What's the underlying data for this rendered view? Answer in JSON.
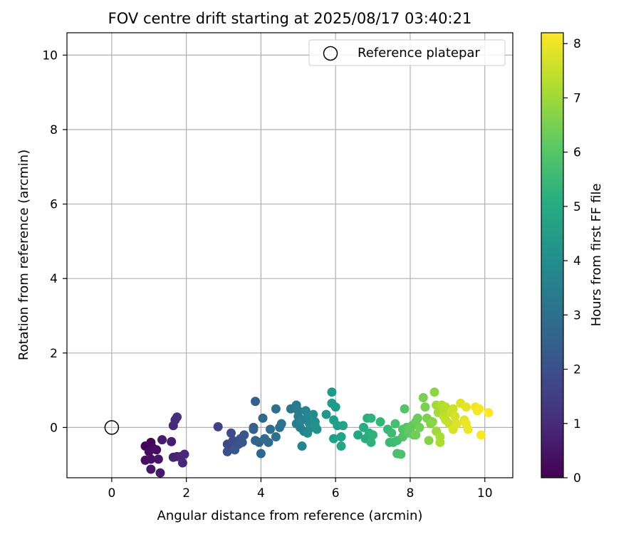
{
  "chart_data": {
    "type": "scatter",
    "title": "FOV centre drift starting at 2025/08/17 03:40:21",
    "xlabel": "Angular distance from reference (arcmin)",
    "ylabel": "Rotation from reference (arcmin)",
    "xlim": [
      -1.2,
      10.75
    ],
    "ylim": [
      -1.35,
      10.6
    ],
    "xticks": [
      0,
      2,
      4,
      6,
      8,
      10
    ],
    "yticks": [
      0,
      2,
      4,
      6,
      8,
      10
    ],
    "grid": true,
    "legend": {
      "position": "top-right",
      "entries": [
        "Reference platepar"
      ]
    },
    "reference_point": {
      "label": "Reference platepar",
      "x": 0,
      "y": 0
    },
    "colorbar": {
      "label": "Hours from first FF file",
      "range": [
        0,
        8.2
      ],
      "ticks": [
        0,
        1,
        2,
        3,
        4,
        5,
        6,
        7,
        8
      ],
      "colormap": "viridis"
    },
    "series": [
      {
        "points": [
          [
            0.9,
            -0.5,
            0.1
          ],
          [
            1.05,
            -0.4,
            0.15
          ],
          [
            1.1,
            -0.55,
            0.2
          ],
          [
            1.0,
            -0.65,
            0.25
          ],
          [
            1.2,
            -0.6,
            0.3
          ],
          [
            0.9,
            -0.88,
            0.35
          ],
          [
            1.05,
            -0.85,
            0.4
          ],
          [
            1.25,
            -0.85,
            0.45
          ],
          [
            1.05,
            -1.12,
            0.5
          ],
          [
            1.3,
            -1.22,
            0.55
          ],
          [
            1.35,
            -0.33,
            0.6
          ],
          [
            1.6,
            -0.38,
            0.7
          ],
          [
            1.65,
            -0.8,
            0.75
          ],
          [
            1.75,
            -0.78,
            0.8
          ],
          [
            1.85,
            -0.78,
            0.85
          ],
          [
            1.95,
            -0.72,
            0.9
          ],
          [
            1.9,
            -0.95,
            0.95
          ],
          [
            1.65,
            0.05,
            1.0
          ],
          [
            1.7,
            0.2,
            1.05
          ],
          [
            1.75,
            0.28,
            1.1
          ],
          [
            2.85,
            0.02,
            1.6
          ],
          [
            3.1,
            -0.45,
            1.8
          ],
          [
            3.2,
            -0.15,
            1.85
          ],
          [
            3.25,
            -0.35,
            1.9
          ],
          [
            3.3,
            -0.55,
            1.95
          ],
          [
            3.1,
            -0.65,
            2.0
          ],
          [
            3.4,
            -0.45,
            2.05
          ],
          [
            3.45,
            -0.3,
            2.1
          ],
          [
            3.5,
            -0.4,
            2.15
          ],
          [
            3.55,
            -0.2,
            2.2
          ],
          [
            3.3,
            -0.6,
            2.25
          ],
          [
            3.8,
            -0.05,
            2.4
          ],
          [
            3.85,
            0.7,
            2.5
          ],
          [
            3.8,
            0.0,
            2.55
          ],
          [
            3.85,
            -0.35,
            2.6
          ],
          [
            3.95,
            -0.4,
            2.65
          ],
          [
            4.0,
            -0.7,
            2.7
          ],
          [
            4.05,
            0.25,
            2.75
          ],
          [
            4.1,
            -0.3,
            2.8
          ],
          [
            4.2,
            -0.4,
            2.85
          ],
          [
            4.25,
            -0.05,
            2.9
          ],
          [
            4.4,
            -0.25,
            2.95
          ],
          [
            4.4,
            0.5,
            3.0
          ],
          [
            4.5,
            0.0,
            3.05
          ],
          [
            4.55,
            0.1,
            3.1
          ],
          [
            4.8,
            0.5,
            3.3
          ],
          [
            4.95,
            0.6,
            3.35
          ],
          [
            5.0,
            0.45,
            3.4
          ],
          [
            5.0,
            0.3,
            3.45
          ],
          [
            4.95,
            0.1,
            3.5
          ],
          [
            5.05,
            0.0,
            3.55
          ],
          [
            5.1,
            0.2,
            3.6
          ],
          [
            5.15,
            -0.1,
            3.65
          ],
          [
            5.1,
            -0.5,
            3.7
          ],
          [
            5.2,
            0.45,
            3.75
          ],
          [
            5.25,
            0.3,
            3.8
          ],
          [
            5.3,
            0.1,
            3.85
          ],
          [
            5.25,
            -0.15,
            3.9
          ],
          [
            5.35,
            0.0,
            3.95
          ],
          [
            5.4,
            0.35,
            4.0
          ],
          [
            5.45,
            0.15,
            4.05
          ],
          [
            5.5,
            -0.05,
            4.1
          ],
          [
            5.45,
            0.05,
            4.15
          ],
          [
            5.75,
            0.35,
            4.3
          ],
          [
            5.9,
            0.95,
            4.4
          ],
          [
            5.9,
            0.65,
            4.45
          ],
          [
            6.0,
            0.55,
            4.5
          ],
          [
            5.95,
            0.2,
            4.55
          ],
          [
            6.05,
            0.05,
            4.6
          ],
          [
            5.95,
            -0.3,
            4.65
          ],
          [
            6.15,
            -0.25,
            4.7
          ],
          [
            6.2,
            0.05,
            4.75
          ],
          [
            6.15,
            -0.5,
            4.8
          ],
          [
            6.6,
            -0.2,
            4.9
          ],
          [
            6.75,
            0.0,
            5.0
          ],
          [
            6.8,
            -0.3,
            5.05
          ],
          [
            6.85,
            0.25,
            5.1
          ],
          [
            6.9,
            -0.15,
            5.15
          ],
          [
            6.95,
            -0.4,
            5.2
          ],
          [
            6.95,
            0.25,
            5.25
          ],
          [
            7.0,
            -0.2,
            5.3
          ],
          [
            7.2,
            0.15,
            5.4
          ],
          [
            7.4,
            -0.05,
            5.5
          ],
          [
            7.45,
            -0.4,
            5.55
          ],
          [
            7.5,
            -0.15,
            5.6
          ],
          [
            7.55,
            -0.4,
            5.65
          ],
          [
            7.65,
            -0.35,
            5.7
          ],
          [
            7.6,
            0.1,
            5.75
          ],
          [
            7.65,
            -0.7,
            5.8
          ],
          [
            7.75,
            -0.72,
            5.85
          ],
          [
            7.8,
            -0.25,
            5.9
          ],
          [
            7.8,
            -0.05,
            5.95
          ],
          [
            7.85,
            0.5,
            6.0
          ],
          [
            7.9,
            0.0,
            6.05
          ],
          [
            7.95,
            -0.15,
            6.1
          ],
          [
            8.0,
            -0.05,
            6.15
          ],
          [
            8.05,
            0.05,
            6.2
          ],
          [
            8.1,
            -0.2,
            6.25
          ],
          [
            8.15,
            0.15,
            6.3
          ],
          [
            8.2,
            0.25,
            6.35
          ],
          [
            8.15,
            -0.2,
            6.4
          ],
          [
            8.25,
            0.0,
            6.45
          ],
          [
            8.35,
            0.8,
            6.5
          ],
          [
            8.4,
            0.55,
            6.55
          ],
          [
            8.45,
            0.25,
            6.6
          ],
          [
            8.5,
            -0.35,
            6.65
          ],
          [
            8.55,
            0.1,
            6.7
          ],
          [
            8.6,
            0.15,
            6.75
          ],
          [
            8.65,
            0.95,
            6.8
          ],
          [
            8.7,
            -0.1,
            7.0
          ],
          [
            8.7,
            0.6,
            7.05
          ],
          [
            8.75,
            0.4,
            7.1
          ],
          [
            8.8,
            -0.25,
            7.15
          ],
          [
            8.8,
            -0.4,
            7.2
          ],
          [
            8.85,
            0.6,
            7.25
          ],
          [
            8.9,
            0.45,
            7.3
          ],
          [
            8.95,
            0.55,
            7.35
          ],
          [
            8.9,
            0.3,
            7.4
          ],
          [
            8.95,
            0.2,
            7.45
          ],
          [
            9.05,
            0.1,
            7.5
          ],
          [
            9.1,
            0.4,
            7.55
          ],
          [
            9.15,
            0.5,
            7.6
          ],
          [
            9.2,
            0.3,
            7.65
          ],
          [
            9.15,
            -0.05,
            7.7
          ],
          [
            9.25,
            0.1,
            7.75
          ],
          [
            9.35,
            0.65,
            7.8
          ],
          [
            9.45,
            0.2,
            7.85
          ],
          [
            9.5,
            0.55,
            7.9
          ],
          [
            9.5,
            0.1,
            7.95
          ],
          [
            9.55,
            -0.05,
            8.0
          ],
          [
            9.75,
            0.55,
            8.05
          ],
          [
            9.8,
            0.45,
            8.1
          ],
          [
            9.85,
            0.5,
            8.12
          ],
          [
            9.9,
            -0.2,
            8.15
          ],
          [
            10.1,
            0.4,
            8.2
          ]
        ]
      }
    ]
  }
}
